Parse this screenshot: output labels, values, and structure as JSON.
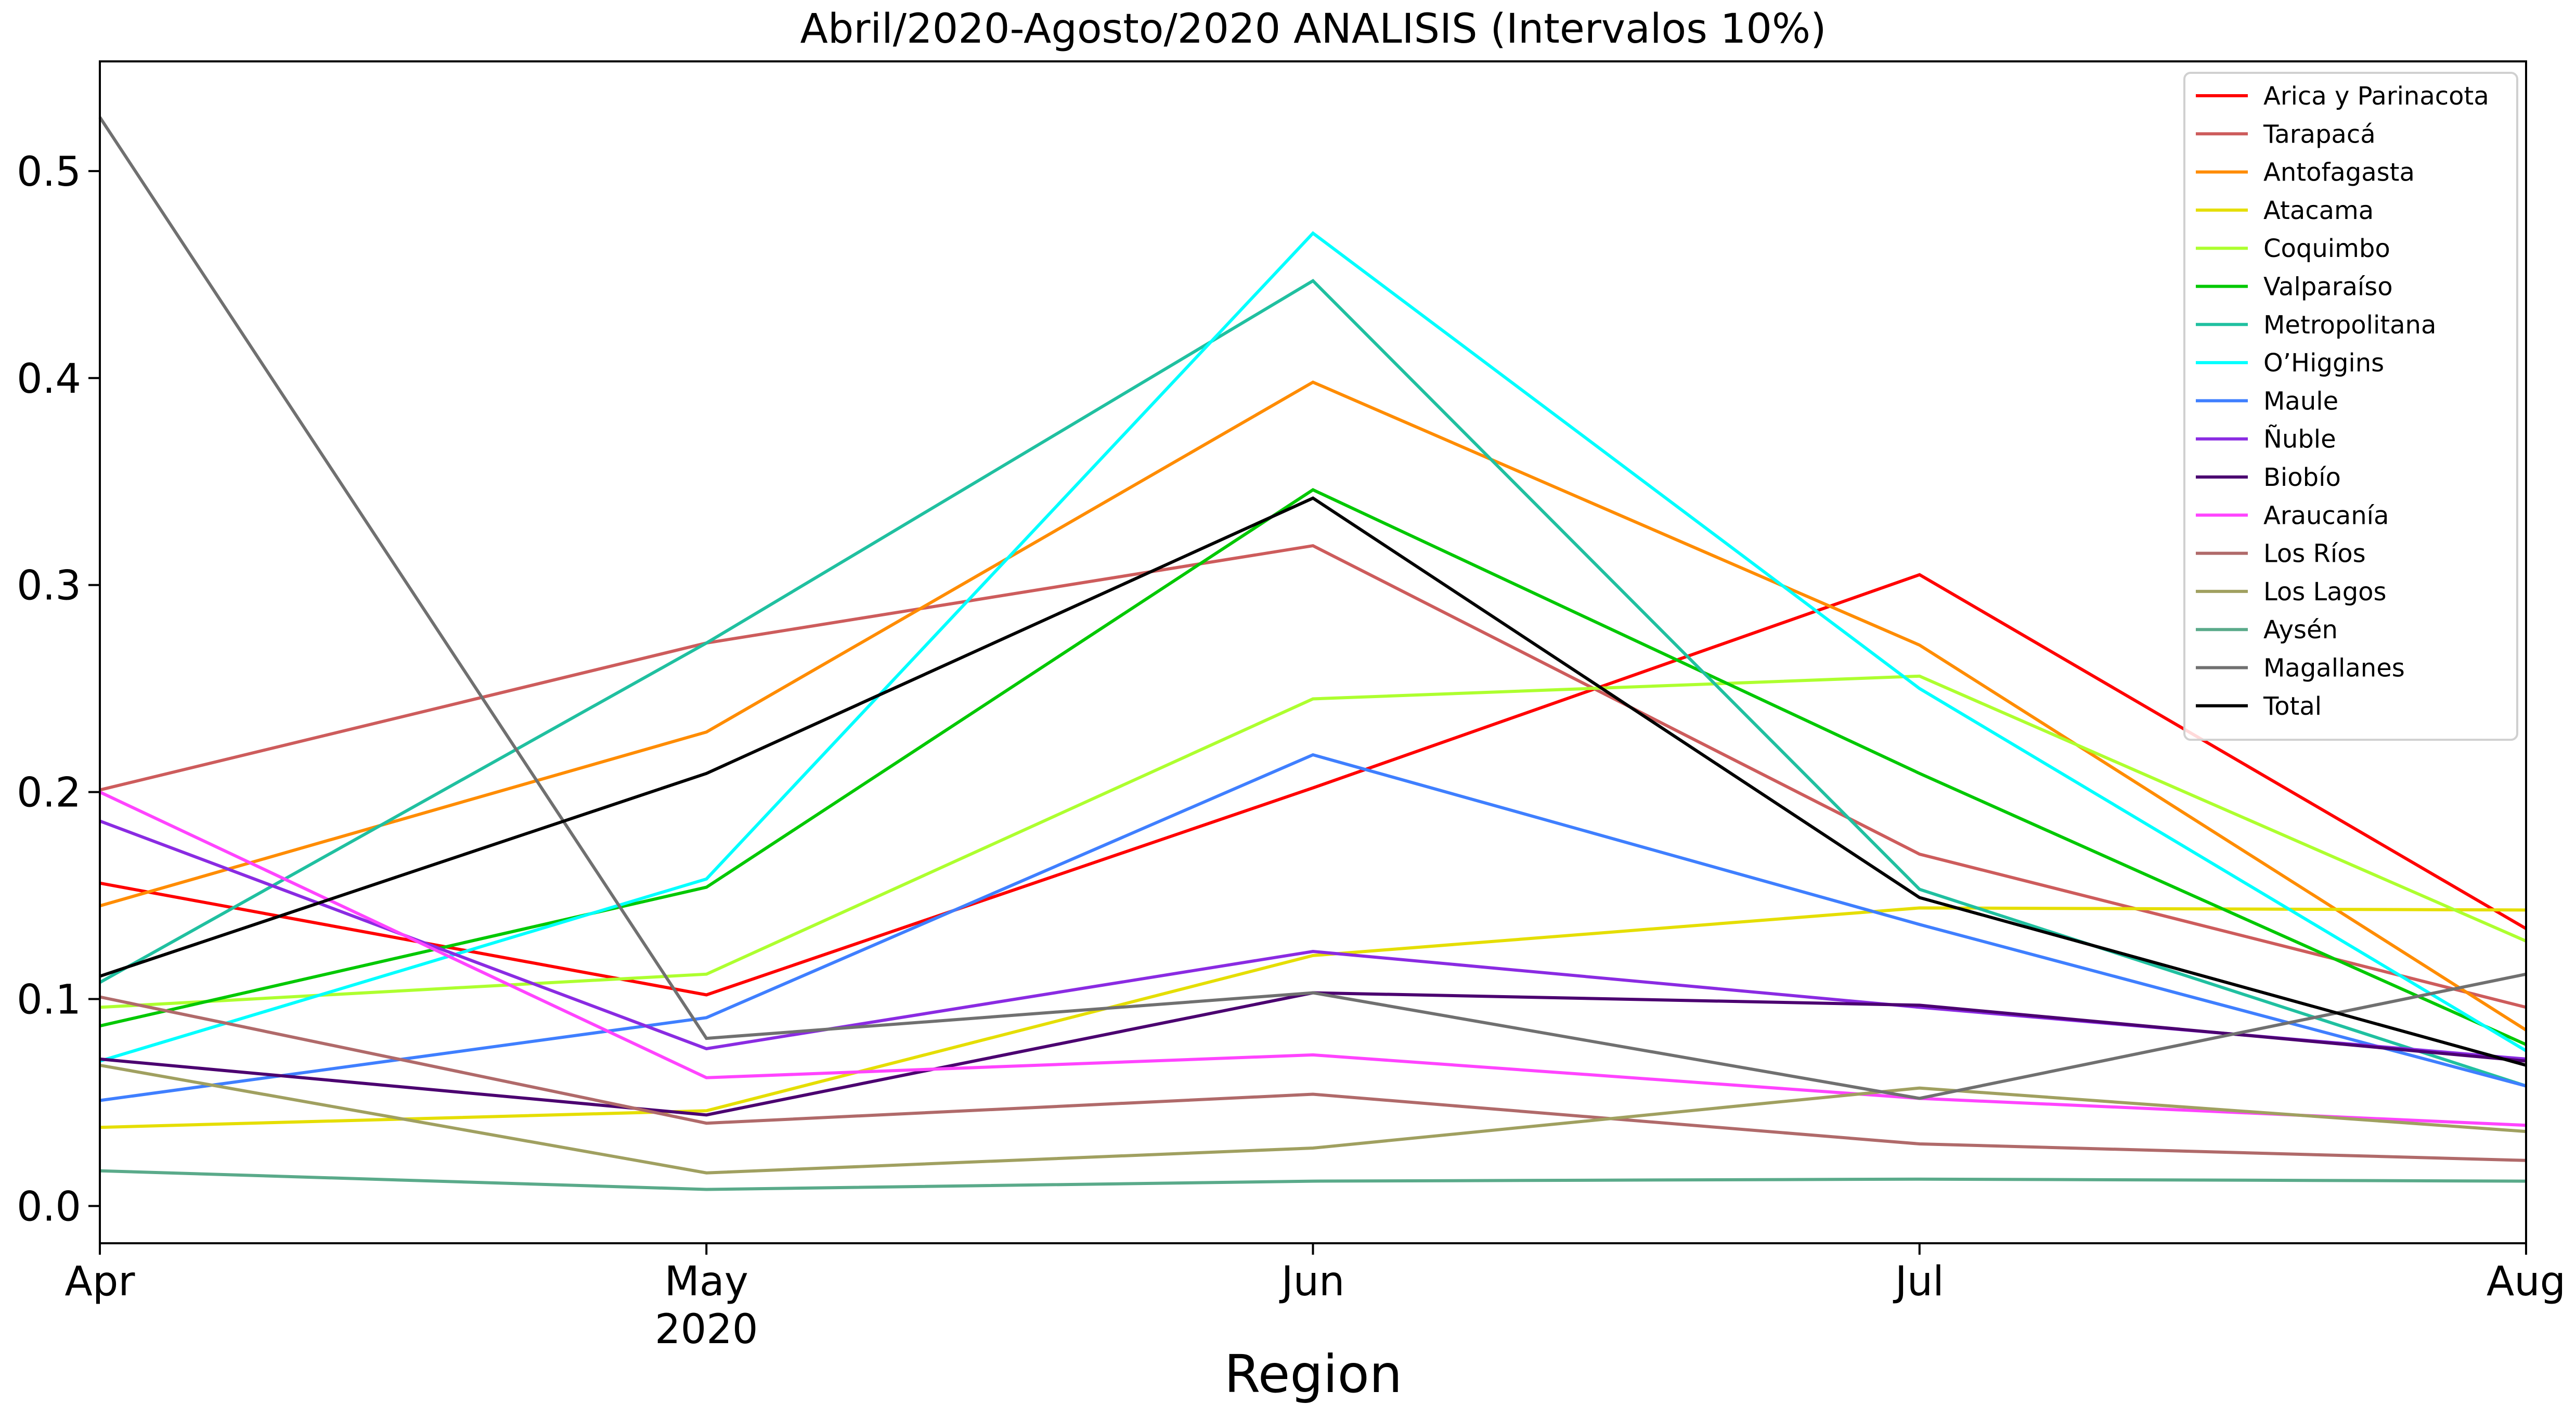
{
  "chart_data": {
    "type": "line",
    "title": "Abril/2020-Agosto/2020 ANALISIS (Intervalos 10%)",
    "xlabel": "Region",
    "ylabel": "",
    "categories": [
      "Apr",
      "May",
      "Jun",
      "Jul",
      "Aug"
    ],
    "x_tick_labels": [
      "Apr",
      "May",
      "Jun",
      "Jul",
      "Aug"
    ],
    "x_year_label": "2020",
    "y_ticks": [
      "0.0",
      "0.1",
      "0.2",
      "0.3",
      "0.4",
      "0.5"
    ],
    "ylim": [
      -0.018,
      0.553
    ],
    "grid": false,
    "legend_position": "top-right",
    "series": [
      {
        "name": "Arica y Parinacota",
        "color": "#ff0000",
        "values": [
          0.156,
          0.102,
          0.202,
          0.305,
          0.134
        ]
      },
      {
        "name": "Tarapacá",
        "color": "#cd5c5c",
        "values": [
          0.201,
          0.272,
          0.319,
          0.17,
          0.096
        ]
      },
      {
        "name": "Antofagasta",
        "color": "#ff8c00",
        "values": [
          0.145,
          0.229,
          0.398,
          0.271,
          0.085
        ]
      },
      {
        "name": "Atacama",
        "color": "#e5de00",
        "values": [
          0.038,
          0.046,
          0.121,
          0.144,
          0.143
        ]
      },
      {
        "name": "Coquimbo",
        "color": "#adff2f",
        "values": [
          0.096,
          0.112,
          0.245,
          0.256,
          0.128
        ]
      },
      {
        "name": "Valparaíso",
        "color": "#00c800",
        "values": [
          0.087,
          0.154,
          0.346,
          0.209,
          0.078
        ]
      },
      {
        "name": "Metropolitana",
        "color": "#20c0a0",
        "values": [
          0.108,
          0.272,
          0.447,
          0.153,
          0.058
        ]
      },
      {
        "name": "O’Higgins",
        "color": "#00ffff",
        "values": [
          0.07,
          0.158,
          0.47,
          0.25,
          0.075
        ]
      },
      {
        "name": "Maule",
        "color": "#3f7fff",
        "values": [
          0.051,
          0.091,
          0.218,
          0.136,
          0.058
        ]
      },
      {
        "name": "Ñuble",
        "color": "#8a2be2",
        "values": [
          0.186,
          0.076,
          0.123,
          0.096,
          0.071
        ]
      },
      {
        "name": "Biobío",
        "color": "#4b0070",
        "values": [
          0.071,
          0.044,
          0.103,
          0.097,
          0.07
        ]
      },
      {
        "name": "Araucanía",
        "color": "#ff44ff",
        "values": [
          0.2,
          0.062,
          0.073,
          0.052,
          0.039
        ]
      },
      {
        "name": "Los Ríos",
        "color": "#b06a6a",
        "values": [
          0.101,
          0.04,
          0.054,
          0.03,
          0.022
        ]
      },
      {
        "name": "Los Lagos",
        "color": "#a0a060",
        "values": [
          0.068,
          0.016,
          0.028,
          0.057,
          0.036
        ]
      },
      {
        "name": "Aysén",
        "color": "#5aaa8a",
        "values": [
          0.017,
          0.008,
          0.012,
          0.013,
          0.012
        ]
      },
      {
        "name": "Magallanes",
        "color": "#707070",
        "values": [
          0.526,
          0.081,
          0.103,
          0.052,
          0.112
        ]
      },
      {
        "name": "Total",
        "color": "#000000",
        "values": [
          0.111,
          0.209,
          0.342,
          0.149,
          0.068
        ]
      }
    ]
  }
}
